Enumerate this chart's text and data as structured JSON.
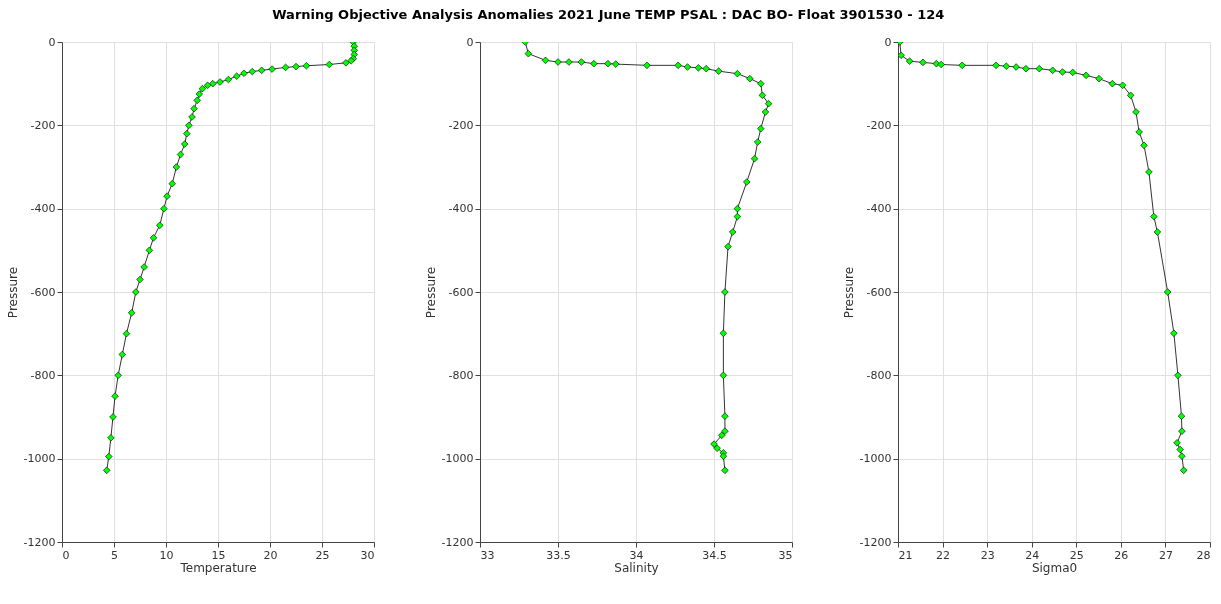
{
  "chart_data": [
    {
      "type": "line",
      "title": "Warning Objective Analysis Anomalies 2021 June TEMP PSAL :  DAC BO- Float 3901530 - 124",
      "xlabel": "Temperature",
      "ylabel": "Pressure",
      "xlim": [
        0,
        30
      ],
      "xticks": [
        0,
        5,
        10,
        15,
        20,
        25,
        30
      ],
      "ylim": [
        -1200,
        0
      ],
      "yticks": [
        -1200,
        -1000,
        -800,
        -600,
        -400,
        -200,
        0
      ],
      "grid": true,
      "marker": "diamond",
      "line_style": "solid",
      "series": [
        {
          "color": "#00ff00",
          "x": [
            28.0,
            28.1,
            28.1,
            28.1,
            28.0,
            27.8,
            27.3,
            25.7,
            23.5,
            22.5,
            21.5,
            20.2,
            19.2,
            18.3,
            17.5,
            16.8,
            16.0,
            15.2,
            14.5,
            14.0,
            13.5,
            13.2,
            13.0,
            12.7,
            12.5,
            12.2,
            12.0,
            11.8,
            11.4,
            11.0,
            10.6,
            10.1,
            9.8,
            9.4,
            8.8,
            8.4,
            7.9,
            7.5,
            7.1,
            6.7,
            6.2,
            5.8,
            5.4,
            5.1,
            4.9,
            4.7,
            4.5,
            4.3
          ],
          "values": [
            0,
            -10,
            -20,
            -30,
            -40,
            -45,
            -50,
            -54,
            -57,
            -59,
            -61,
            -65,
            -68,
            -71,
            -75,
            -82,
            -90,
            -96,
            -100,
            -104,
            -112,
            -125,
            -140,
            -160,
            -180,
            -200,
            -220,
            -245,
            -270,
            -300,
            -340,
            -370,
            -400,
            -440,
            -470,
            -500,
            -540,
            -570,
            -600,
            -650,
            -700,
            -750,
            -800,
            -850,
            -900,
            -950,
            -995,
            -1028
          ]
        }
      ]
    },
    {
      "type": "line",
      "xlabel": "Salinity",
      "ylabel": "Pressure",
      "xlim": [
        33,
        35
      ],
      "xticks": [
        33,
        33.5,
        34,
        34.5,
        35
      ],
      "ylim": [
        -1200,
        0
      ],
      "yticks": [
        -1200,
        -1000,
        -800,
        -600,
        -400,
        -200,
        0
      ],
      "grid": true,
      "marker": "diamond",
      "line_style": "solid",
      "series": [
        {
          "color": "#00ff00",
          "x": [
            33.29,
            33.31,
            33.42,
            33.5,
            33.57,
            33.65,
            33.73,
            33.82,
            33.87,
            34.07,
            34.27,
            34.33,
            34.4,
            34.45,
            34.53,
            34.65,
            34.73,
            34.8,
            34.81,
            34.85,
            34.83,
            34.8,
            34.78,
            34.76,
            34.71,
            34.65,
            34.65,
            34.62,
            34.59,
            34.57,
            34.56,
            34.56,
            34.57,
            34.57,
            34.55,
            34.5,
            34.52,
            34.56,
            34.56,
            34.57
          ],
          "values": [
            0,
            -28,
            -44,
            -48,
            -48,
            -48,
            -52,
            -52,
            -53,
            -56,
            -56,
            -60,
            -62,
            -64,
            -70,
            -76,
            -88,
            -100,
            -128,
            -148,
            -168,
            -208,
            -240,
            -280,
            -336,
            -400,
            -419,
            -456,
            -491,
            -600,
            -699,
            -800,
            -898,
            -934,
            -944,
            -965,
            -975,
            -986,
            -994,
            -1028
          ]
        }
      ]
    },
    {
      "type": "line",
      "xlabel": "Sigma0",
      "ylabel": "Pressure",
      "xlim": [
        21,
        28
      ],
      "xticks": [
        21,
        22,
        23,
        24,
        25,
        26,
        27,
        28
      ],
      "ylim": [
        -1200,
        0
      ],
      "yticks": [
        -1200,
        -1000,
        -800,
        -600,
        -400,
        -200,
        0
      ],
      "grid": true,
      "marker": "diamond",
      "line_style": "solid",
      "series": [
        {
          "color": "#00ff00",
          "x": [
            21.04,
            21.07,
            21.26,
            21.56,
            21.86,
            21.97,
            22.44,
            23.2,
            23.43,
            23.65,
            23.87,
            24.17,
            24.47,
            24.69,
            24.92,
            25.22,
            25.51,
            25.81,
            26.04,
            26.22,
            26.34,
            26.41,
            26.52,
            26.63,
            26.74,
            26.82,
            27.05,
            27.19,
            27.28,
            27.36,
            27.37,
            27.26,
            27.33,
            27.37,
            27.41
          ],
          "values": [
            0,
            -32,
            -46,
            -49,
            -52,
            -54,
            -56,
            -56,
            -58,
            -60,
            -64,
            -64,
            -68,
            -72,
            -73,
            -80,
            -88,
            -100,
            -104,
            -128,
            -168,
            -216,
            -248,
            -312,
            -419,
            -456,
            -600,
            -699,
            -800,
            -898,
            -934,
            -962,
            -978,
            -994,
            -1028
          ]
        }
      ]
    }
  ]
}
